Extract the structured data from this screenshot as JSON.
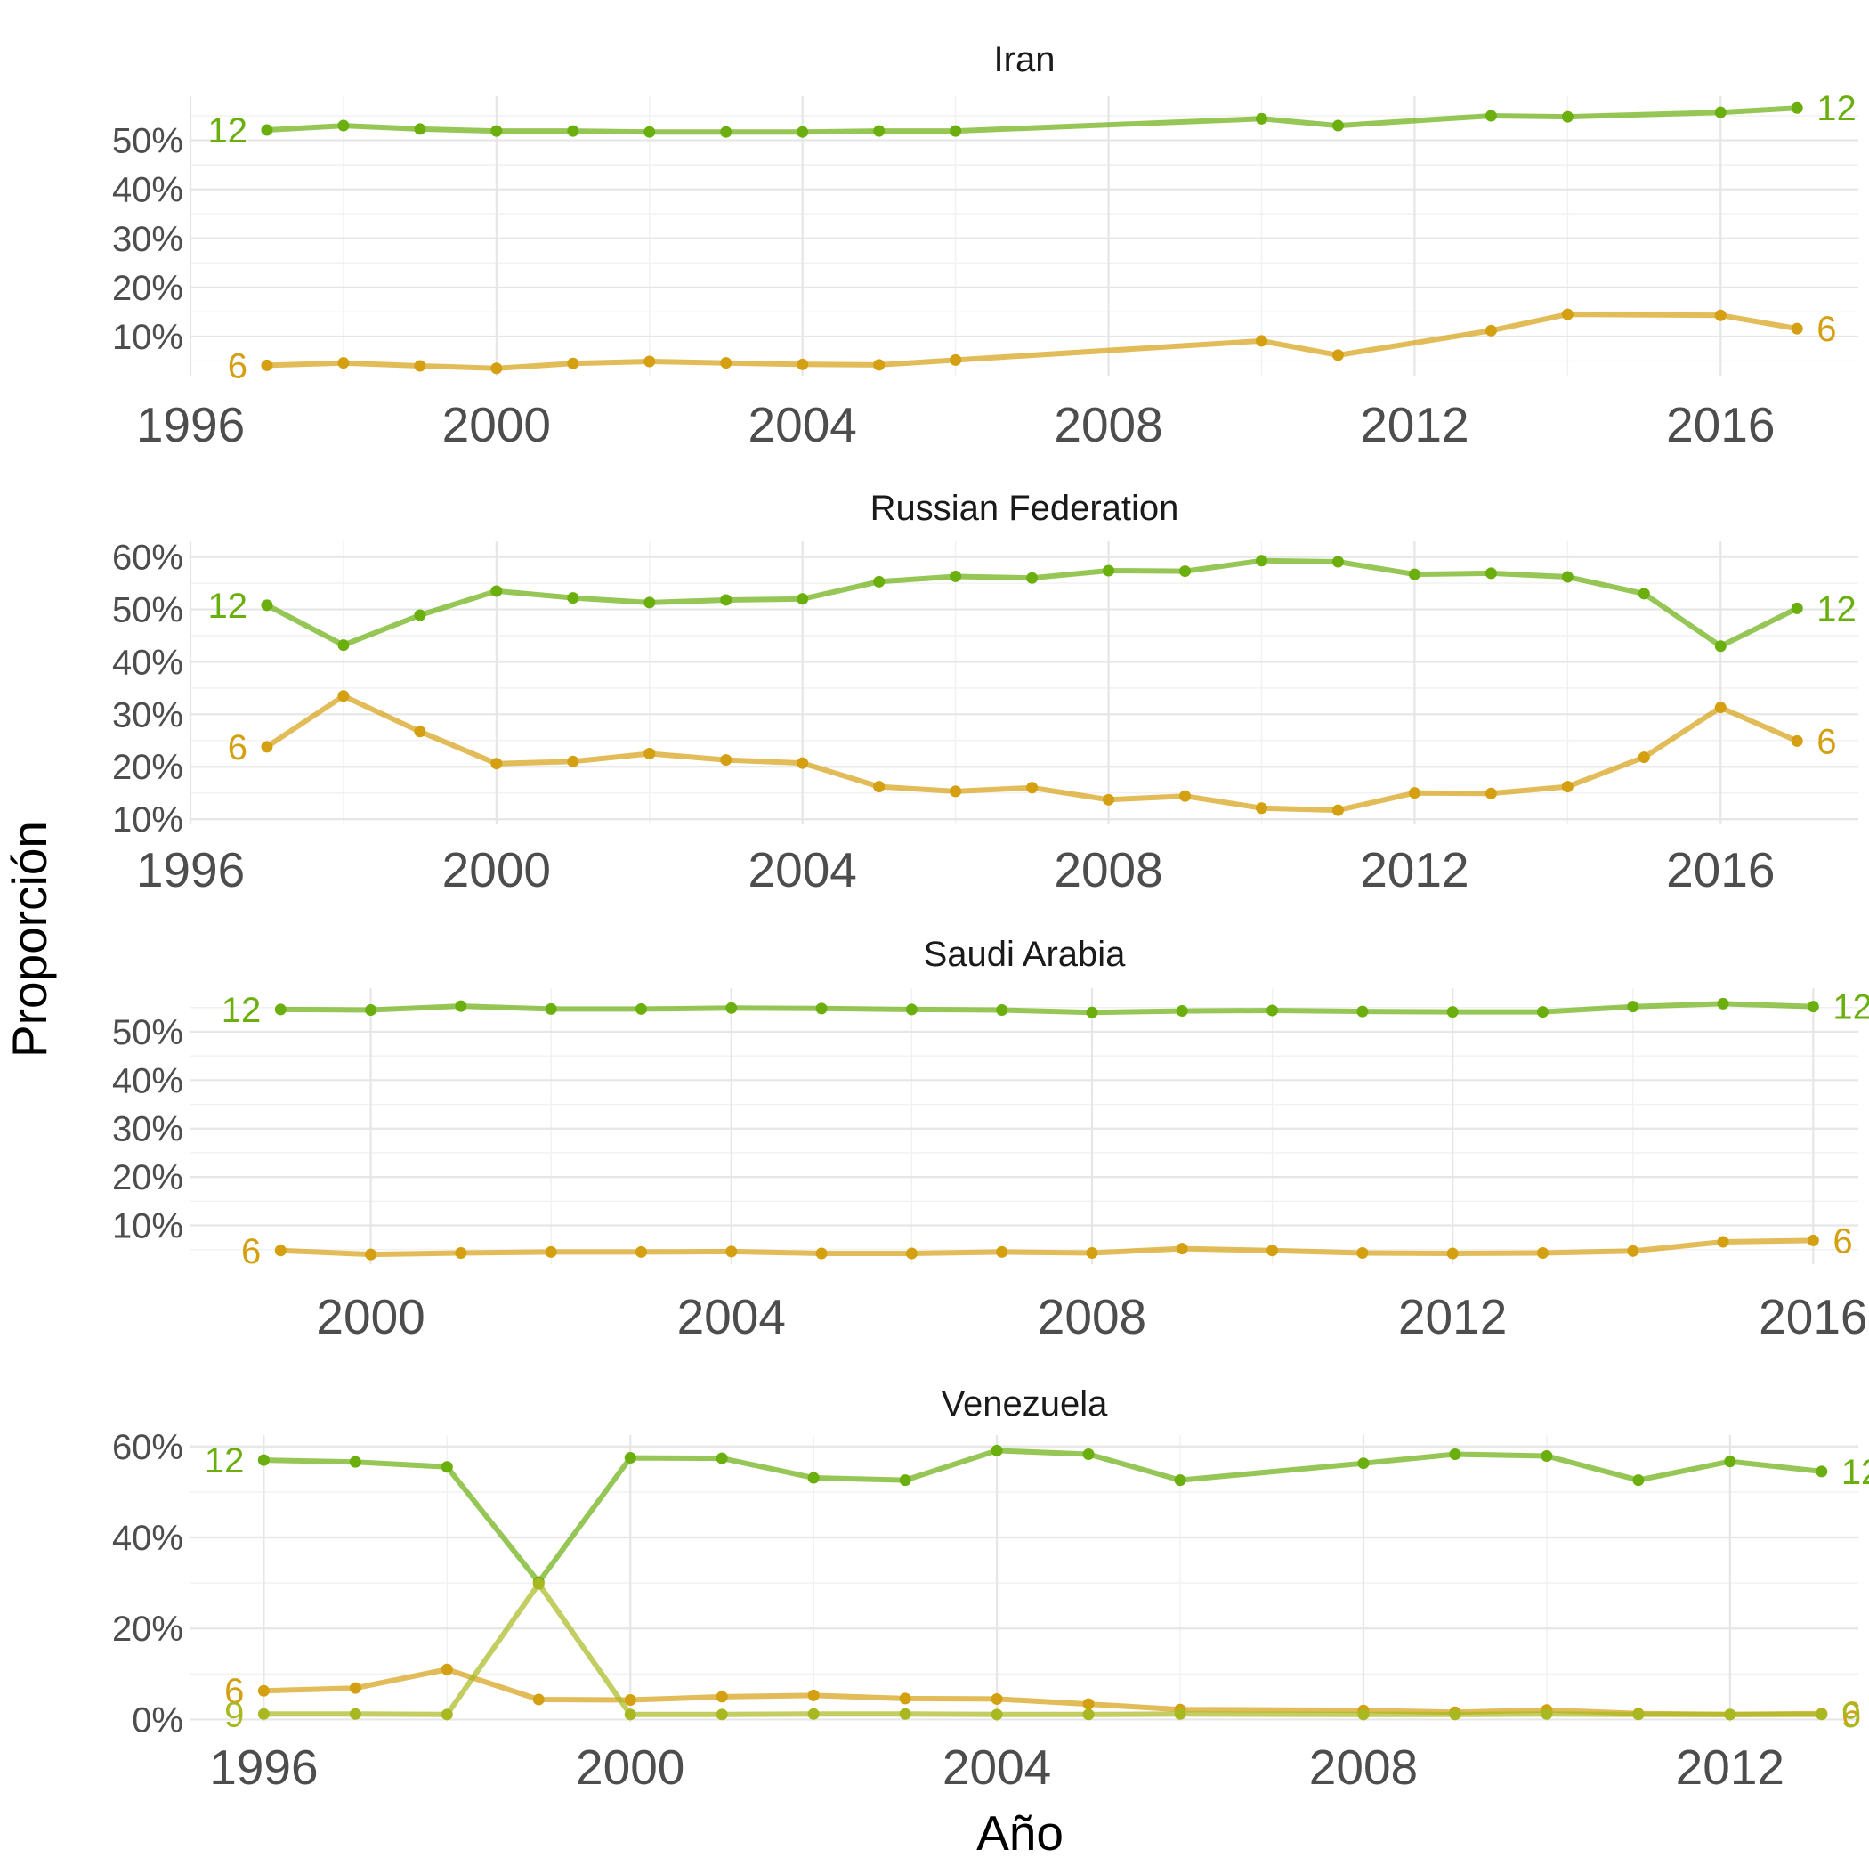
{
  "colors": {
    "12": "#6AAF0E",
    "6": "#D4A011",
    "9": "#A8B820"
  },
  "chart_data": {
    "type": "line",
    "xlabel": "Año",
    "ylabel": "Proporción",
    "grid": true,
    "facets": [
      {
        "title": "Iran",
        "xlim": [
          1996,
          2017.8
        ],
        "xticks": [
          1996,
          2000,
          2004,
          2008,
          2012,
          2016
        ],
        "ylim": [
          0.02,
          0.59
        ],
        "yticks": [
          0.1,
          0.2,
          0.3,
          0.4,
          0.5
        ],
        "ytick_labels": [
          "10%",
          "20%",
          "30%",
          "40%",
          "50%"
        ],
        "series": [
          {
            "name": "12",
            "color": "#6AAF0E",
            "x": [
              1997,
              1998,
              1999,
              2000,
              2001,
              2002,
              2003,
              2004,
              2005,
              2006,
              2010,
              2011,
              2013,
              2014,
              2016,
              2017
            ],
            "y": [
              0.521,
              0.53,
              0.523,
              0.519,
              0.519,
              0.517,
              0.517,
              0.517,
              0.519,
              0.519,
              0.544,
              0.53,
              0.55,
              0.548,
              0.557,
              0.566
            ]
          },
          {
            "name": "6",
            "color": "#D4A011",
            "x": [
              1997,
              1998,
              1999,
              2000,
              2001,
              2002,
              2003,
              2004,
              2005,
              2006,
              2010,
              2011,
              2013,
              2014,
              2016,
              2017
            ],
            "y": [
              0.041,
              0.046,
              0.04,
              0.035,
              0.045,
              0.049,
              0.046,
              0.043,
              0.042,
              0.052,
              0.091,
              0.062,
              0.112,
              0.145,
              0.143,
              0.116
            ]
          }
        ]
      },
      {
        "title": "Russian Federation",
        "xlim": [
          1996,
          2017.8
        ],
        "xticks": [
          1996,
          2000,
          2004,
          2008,
          2012,
          2016
        ],
        "ylim": [
          0.09,
          0.63
        ],
        "yticks": [
          0.1,
          0.2,
          0.3,
          0.4,
          0.5,
          0.6
        ],
        "ytick_labels": [
          "10%",
          "20%",
          "30%",
          "40%",
          "50%",
          "60%"
        ],
        "series": [
          {
            "name": "12",
            "color": "#6AAF0E",
            "x": [
              1997,
              1998,
              1999,
              2000,
              2001,
              2002,
              2003,
              2004,
              2005,
              2006,
              2007,
              2008,
              2009,
              2010,
              2011,
              2012,
              2013,
              2014,
              2015,
              2016,
              2017
            ],
            "y": [
              0.508,
              0.432,
              0.489,
              0.535,
              0.522,
              0.513,
              0.518,
              0.52,
              0.553,
              0.563,
              0.56,
              0.574,
              0.573,
              0.593,
              0.591,
              0.567,
              0.569,
              0.562,
              0.53,
              0.43,
              0.502
            ]
          },
          {
            "name": "6",
            "color": "#D4A011",
            "x": [
              1997,
              1998,
              1999,
              2000,
              2001,
              2002,
              2003,
              2004,
              2005,
              2006,
              2007,
              2008,
              2009,
              2010,
              2011,
              2012,
              2013,
              2014,
              2015,
              2016,
              2017
            ],
            "y": [
              0.238,
              0.335,
              0.267,
              0.206,
              0.21,
              0.225,
              0.213,
              0.207,
              0.162,
              0.153,
              0.16,
              0.137,
              0.144,
              0.121,
              0.117,
              0.15,
              0.149,
              0.162,
              0.218,
              0.313,
              0.249
            ]
          }
        ]
      },
      {
        "title": "Saudi Arabia",
        "xlim": [
          1998,
          2016.5
        ],
        "xticks": [
          2000,
          2004,
          2008,
          2012,
          2016
        ],
        "ylim": [
          0.02,
          0.59
        ],
        "yticks": [
          0.1,
          0.2,
          0.3,
          0.4,
          0.5
        ],
        "ytick_labels": [
          "10%",
          "20%",
          "30%",
          "40%",
          "50%"
        ],
        "series": [
          {
            "name": "12",
            "color": "#6AAF0E",
            "x": [
              1999,
              2000,
              2001,
              2002,
              2003,
              2004,
              2005,
              2006,
              2007,
              2008,
              2009,
              2010,
              2011,
              2012,
              2013,
              2014,
              2015,
              2016
            ],
            "y": [
              0.546,
              0.545,
              0.553,
              0.547,
              0.547,
              0.549,
              0.548,
              0.546,
              0.545,
              0.54,
              0.543,
              0.544,
              0.542,
              0.541,
              0.541,
              0.552,
              0.558,
              0.552
            ]
          },
          {
            "name": "6",
            "color": "#D4A011",
            "x": [
              1999,
              2000,
              2001,
              2002,
              2003,
              2004,
              2005,
              2006,
              2007,
              2008,
              2009,
              2010,
              2011,
              2012,
              2013,
              2014,
              2015,
              2016
            ],
            "y": [
              0.048,
              0.04,
              0.043,
              0.045,
              0.045,
              0.046,
              0.042,
              0.042,
              0.045,
              0.043,
              0.052,
              0.048,
              0.043,
              0.042,
              0.043,
              0.047,
              0.066,
              0.069
            ]
          }
        ]
      },
      {
        "title": "Venezuela",
        "xlim": [
          1995.2,
          2013.4
        ],
        "xticks": [
          1996,
          2000,
          2004,
          2008,
          2012
        ],
        "ylim": [
          -0.005,
          0.625
        ],
        "yticks": [
          0.0,
          0.2,
          0.4,
          0.6
        ],
        "ytick_labels": [
          "0%",
          "20%",
          "40%",
          "60%"
        ],
        "series": [
          {
            "name": "12",
            "color": "#6AAF0E",
            "x": [
              1996,
              1997,
              1998,
              1999,
              2000,
              2001,
              2002,
              2003,
              2004,
              2005,
              2006,
              2008,
              2009,
              2010,
              2011,
              2012,
              2013
            ],
            "y": [
              0.57,
              0.566,
              0.555,
              0.302,
              0.575,
              0.574,
              0.531,
              0.526,
              0.591,
              0.583,
              0.526,
              0.563,
              0.583,
              0.579,
              0.526,
              0.567,
              0.545
            ]
          },
          {
            "name": "6",
            "color": "#D4A011",
            "x": [
              1996,
              1997,
              1998,
              1999,
              2000,
              2001,
              2002,
              2003,
              2004,
              2005,
              2006,
              2008,
              2009,
              2010,
              2011,
              2012,
              2013
            ],
            "y": [
              0.063,
              0.069,
              0.11,
              0.044,
              0.043,
              0.05,
              0.053,
              0.046,
              0.045,
              0.034,
              0.022,
              0.02,
              0.016,
              0.021,
              0.013,
              0.011,
              0.013
            ]
          },
          {
            "name": "9",
            "color": "#A8B820",
            "x": [
              1996,
              1997,
              1998,
              1999,
              2000,
              2001,
              2002,
              2003,
              2004,
              2005,
              2006,
              2008,
              2009,
              2010,
              2011,
              2012,
              2013
            ],
            "y": [
              0.012,
              0.012,
              0.011,
              0.298,
              0.011,
              0.011,
              0.012,
              0.012,
              0.011,
              0.011,
              0.012,
              0.011,
              0.011,
              0.012,
              0.011,
              0.011,
              0.011
            ]
          }
        ]
      }
    ]
  }
}
